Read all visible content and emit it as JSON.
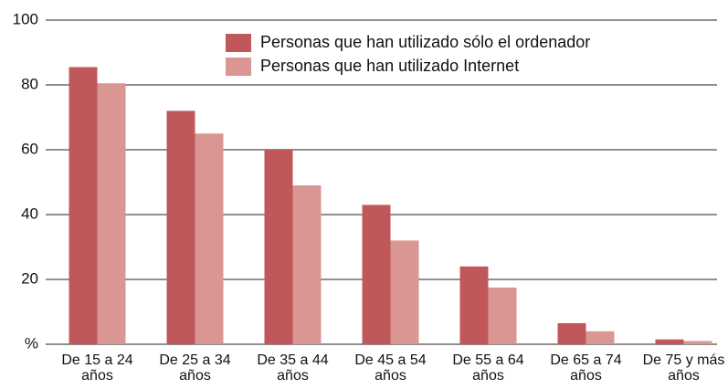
{
  "chart_data": {
    "type": "bar",
    "categories": [
      "De 15 a 24 años",
      "De 25 a 34 años",
      "De 35 a 44 años",
      "De 45 a 54 años",
      "De 55 a 64 años",
      "De 65 a 74 años",
      "De 75 y más años"
    ],
    "series": [
      {
        "name": "Personas que han utilizado sólo el ordenador",
        "color": "#c0575a",
        "values": [
          85.5,
          72,
          60,
          43,
          24,
          6.5,
          1.5
        ]
      },
      {
        "name": "Personas que han utilizado Internet",
        "color": "#d99692",
        "values": [
          80.5,
          65,
          49,
          32,
          17.5,
          4,
          1
        ]
      }
    ],
    "ylim": [
      0,
      100
    ],
    "yticks": [
      {
        "value": 0,
        "label": "%"
      },
      20,
      40,
      60,
      80,
      100
    ],
    "grid": true,
    "legend": "top-right"
  }
}
